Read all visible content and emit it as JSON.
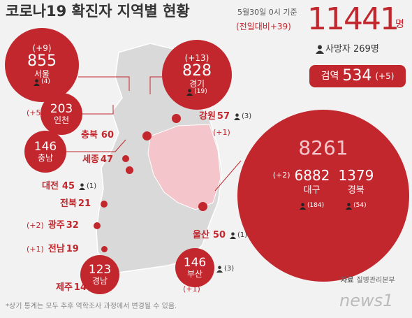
{
  "header": {
    "title": "코로나19 확진자 지역별 현황",
    "date": "5월30일 0시 기준",
    "change": "(전일대비+39)",
    "total": "11441",
    "unit": "명",
    "deaths": "사망자 269명"
  },
  "quarantine": {
    "label": "검역",
    "value": "534",
    "change": "(+5)"
  },
  "regions": [
    {
      "name": "서울",
      "value": "855",
      "change": "(+9)",
      "deaths": "(4)"
    },
    {
      "name": "경기",
      "value": "828",
      "change": "(+13)",
      "deaths": "(19)"
    },
    {
      "name": "인천",
      "value": "203",
      "change": "(+5)"
    },
    {
      "name": "강원",
      "value": "57",
      "change": "(+1)",
      "deaths": "(3)"
    },
    {
      "name": "충북",
      "value": "60"
    },
    {
      "name": "충남",
      "value": "146"
    },
    {
      "name": "세종",
      "value": "47"
    },
    {
      "name": "대전",
      "value": "45",
      "deaths": "(1)"
    },
    {
      "name": "전북",
      "value": "21"
    },
    {
      "name": "광주",
      "value": "32",
      "change": "(+2)"
    },
    {
      "name": "전남",
      "value": "19",
      "change": "(+1)"
    },
    {
      "name": "제주",
      "value": "14"
    },
    {
      "name": "대구",
      "value": "6882",
      "change": "(+2)",
      "deaths": "(184)"
    },
    {
      "name": "경북",
      "value": "1379",
      "deaths": "(54)"
    },
    {
      "name": "울산",
      "value": "50",
      "deaths": "(1)"
    },
    {
      "name": "부산",
      "value": "146",
      "change": "(+1)",
      "deaths": "(3)"
    },
    {
      "name": "경남",
      "value": "123"
    }
  ],
  "daegu_gyeongbuk_total": "8261",
  "source": {
    "label": "자료",
    "text": "질병관리본부"
  },
  "footnote": "*상기 통계는 모두 추후 역학조사 과정에서 변경될 수 있음.",
  "logo": "news1"
}
